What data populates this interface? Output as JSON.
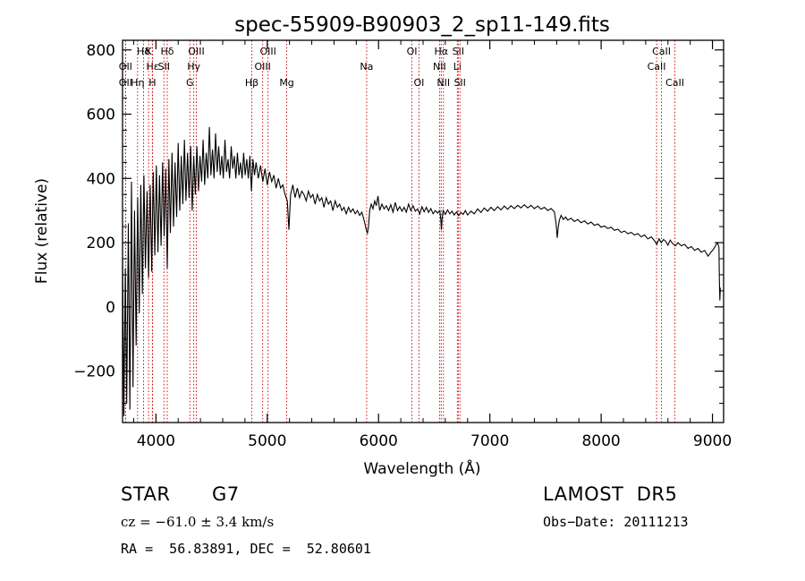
{
  "chart_data": {
    "type": "line",
    "title": "spec-55909-B90903_2_sp11-149.fits",
    "xlabel": "Wavelength (Å)",
    "ylabel": "Flux (relative)",
    "xlim": [
      3700,
      9100
    ],
    "ylim": [
      -360,
      830
    ],
    "x_ticks": [
      4000,
      5000,
      6000,
      7000,
      8000,
      9000
    ],
    "y_ticks": [
      -200,
      0,
      200,
      400,
      600,
      800
    ],
    "grid": false,
    "line_color": "#000000",
    "marker_color": "#cc0000",
    "series": [
      {
        "values": [
          [
            3700,
            150
          ],
          [
            3712,
            -340
          ],
          [
            3725,
            120
          ],
          [
            3738,
            -300
          ],
          [
            3752,
            260
          ],
          [
            3766,
            -320
          ],
          [
            3780,
            390
          ],
          [
            3794,
            -250
          ],
          [
            3808,
            300
          ],
          [
            3822,
            -120
          ],
          [
            3836,
            340
          ],
          [
            3850,
            -20
          ],
          [
            3864,
            380
          ],
          [
            3878,
            40
          ],
          [
            3892,
            410
          ],
          [
            3906,
            120
          ],
          [
            3920,
            360
          ],
          [
            3934,
            90
          ],
          [
            3948,
            380
          ],
          [
            3962,
            110
          ],
          [
            3976,
            420
          ],
          [
            3990,
            160
          ],
          [
            4004,
            440
          ],
          [
            4018,
            170
          ],
          [
            4032,
            410
          ],
          [
            4046,
            190
          ],
          [
            4060,
            450
          ],
          [
            4074,
            220
          ],
          [
            4088,
            430
          ],
          [
            4102,
            120
          ],
          [
            4116,
            460
          ],
          [
            4130,
            230
          ],
          [
            4144,
            480
          ],
          [
            4158,
            250
          ],
          [
            4172,
            450
          ],
          [
            4186,
            280
          ],
          [
            4200,
            510
          ],
          [
            4214,
            300
          ],
          [
            4228,
            470
          ],
          [
            4242,
            320
          ],
          [
            4256,
            520
          ],
          [
            4270,
            330
          ],
          [
            4284,
            480
          ],
          [
            4298,
            340
          ],
          [
            4312,
            500
          ],
          [
            4326,
            300
          ],
          [
            4340,
            470
          ],
          [
            4354,
            350
          ],
          [
            4368,
            500
          ],
          [
            4382,
            360
          ],
          [
            4396,
            470
          ],
          [
            4410,
            390
          ],
          [
            4424,
            520
          ],
          [
            4438,
            380
          ],
          [
            4452,
            480
          ],
          [
            4466,
            400
          ],
          [
            4480,
            560
          ],
          [
            4494,
            410
          ],
          [
            4508,
            490
          ],
          [
            4522,
            400
          ],
          [
            4536,
            540
          ],
          [
            4550,
            420
          ],
          [
            4564,
            500
          ],
          [
            4578,
            410
          ],
          [
            4592,
            470
          ],
          [
            4606,
            400
          ],
          [
            4620,
            520
          ],
          [
            4634,
            420
          ],
          [
            4648,
            460
          ],
          [
            4662,
            400
          ],
          [
            4676,
            500
          ],
          [
            4690,
            430
          ],
          [
            4704,
            470
          ],
          [
            4718,
            400
          ],
          [
            4732,
            480
          ],
          [
            4746,
            410
          ],
          [
            4760,
            450
          ],
          [
            4774,
            400
          ],
          [
            4788,
            480
          ],
          [
            4802,
            410
          ],
          [
            4816,
            460
          ],
          [
            4830,
            400
          ],
          [
            4844,
            470
          ],
          [
            4858,
            360
          ],
          [
            4872,
            460
          ],
          [
            4886,
            410
          ],
          [
            4900,
            450
          ],
          [
            4920,
            400
          ],
          [
            4940,
            440
          ],
          [
            4960,
            390
          ],
          [
            4980,
            430
          ],
          [
            5000,
            380
          ],
          [
            5020,
            420
          ],
          [
            5040,
            390
          ],
          [
            5060,
            410
          ],
          [
            5080,
            370
          ],
          [
            5100,
            400
          ],
          [
            5120,
            370
          ],
          [
            5140,
            380
          ],
          [
            5160,
            350
          ],
          [
            5180,
            330
          ],
          [
            5195,
            240
          ],
          [
            5210,
            350
          ],
          [
            5230,
            380
          ],
          [
            5250,
            340
          ],
          [
            5270,
            370
          ],
          [
            5290,
            340
          ],
          [
            5310,
            360
          ],
          [
            5330,
            350
          ],
          [
            5350,
            330
          ],
          [
            5370,
            360
          ],
          [
            5390,
            340
          ],
          [
            5410,
            350
          ],
          [
            5430,
            320
          ],
          [
            5450,
            350
          ],
          [
            5470,
            330
          ],
          [
            5490,
            340
          ],
          [
            5510,
            310
          ],
          [
            5530,
            340
          ],
          [
            5550,
            320
          ],
          [
            5570,
            330
          ],
          [
            5590,
            300
          ],
          [
            5610,
            330
          ],
          [
            5630,
            310
          ],
          [
            5650,
            320
          ],
          [
            5670,
            300
          ],
          [
            5690,
            310
          ],
          [
            5710,
            290
          ],
          [
            5730,
            310
          ],
          [
            5750,
            295
          ],
          [
            5770,
            305
          ],
          [
            5790,
            290
          ],
          [
            5810,
            300
          ],
          [
            5830,
            285
          ],
          [
            5850,
            295
          ],
          [
            5870,
            270
          ],
          [
            5880,
            255
          ],
          [
            5890,
            240
          ],
          [
            5900,
            230
          ],
          [
            5910,
            250
          ],
          [
            5920,
            300
          ],
          [
            5935,
            320
          ],
          [
            5950,
            305
          ],
          [
            5965,
            330
          ],
          [
            5980,
            315
          ],
          [
            5995,
            345
          ],
          [
            6010,
            300
          ],
          [
            6030,
            320
          ],
          [
            6050,
            305
          ],
          [
            6070,
            315
          ],
          [
            6090,
            300
          ],
          [
            6110,
            318
          ],
          [
            6130,
            295
          ],
          [
            6150,
            325
          ],
          [
            6170,
            300
          ],
          [
            6190,
            312
          ],
          [
            6210,
            298
          ],
          [
            6230,
            310
          ],
          [
            6250,
            295
          ],
          [
            6270,
            320
          ],
          [
            6290,
            300
          ],
          [
            6310,
            315
          ],
          [
            6330,
            298
          ],
          [
            6350,
            305
          ],
          [
            6370,
            290
          ],
          [
            6390,
            312
          ],
          [
            6410,
            296
          ],
          [
            6430,
            310
          ],
          [
            6450,
            294
          ],
          [
            6470,
            306
          ],
          [
            6490,
            290
          ],
          [
            6510,
            300
          ],
          [
            6530,
            292
          ],
          [
            6550,
            300
          ],
          [
            6560,
            270
          ],
          [
            6565,
            240
          ],
          [
            6570,
            272
          ],
          [
            6580,
            300
          ],
          [
            6600,
            288
          ],
          [
            6620,
            302
          ],
          [
            6640,
            290
          ],
          [
            6660,
            298
          ],
          [
            6680,
            286
          ],
          [
            6700,
            296
          ],
          [
            6720,
            284
          ],
          [
            6740,
            294
          ],
          [
            6760,
            288
          ],
          [
            6780,
            300
          ],
          [
            6800,
            286
          ],
          [
            6830,
            298
          ],
          [
            6860,
            290
          ],
          [
            6890,
            305
          ],
          [
            6920,
            294
          ],
          [
            6950,
            308
          ],
          [
            6980,
            298
          ],
          [
            7010,
            310
          ],
          [
            7040,
            300
          ],
          [
            7070,
            312
          ],
          [
            7100,
            302
          ],
          [
            7130,
            314
          ],
          [
            7160,
            304
          ],
          [
            7190,
            315
          ],
          [
            7220,
            306
          ],
          [
            7250,
            316
          ],
          [
            7280,
            308
          ],
          [
            7310,
            318
          ],
          [
            7340,
            308
          ],
          [
            7370,
            316
          ],
          [
            7400,
            306
          ],
          [
            7430,
            314
          ],
          [
            7460,
            304
          ],
          [
            7490,
            310
          ],
          [
            7520,
            300
          ],
          [
            7550,
            306
          ],
          [
            7580,
            296
          ],
          [
            7595,
            260
          ],
          [
            7605,
            215
          ],
          [
            7615,
            250
          ],
          [
            7625,
            270
          ],
          [
            7640,
            285
          ],
          [
            7660,
            272
          ],
          [
            7680,
            280
          ],
          [
            7700,
            270
          ],
          [
            7730,
            276
          ],
          [
            7760,
            266
          ],
          [
            7790,
            272
          ],
          [
            7820,
            262
          ],
          [
            7850,
            268
          ],
          [
            7880,
            258
          ],
          [
            7910,
            264
          ],
          [
            7940,
            254
          ],
          [
            7970,
            258
          ],
          [
            8000,
            248
          ],
          [
            8030,
            252
          ],
          [
            8060,
            244
          ],
          [
            8090,
            248
          ],
          [
            8120,
            238
          ],
          [
            8150,
            242
          ],
          [
            8180,
            232
          ],
          [
            8210,
            236
          ],
          [
            8240,
            228
          ],
          [
            8270,
            232
          ],
          [
            8300,
            224
          ],
          [
            8330,
            228
          ],
          [
            8360,
            218
          ],
          [
            8390,
            224
          ],
          [
            8420,
            212
          ],
          [
            8450,
            218
          ],
          [
            8480,
            206
          ],
          [
            8500,
            195
          ],
          [
            8520,
            212
          ],
          [
            8540,
            200
          ],
          [
            8560,
            210
          ],
          [
            8580,
            204
          ],
          [
            8600,
            192
          ],
          [
            8620,
            208
          ],
          [
            8640,
            198
          ],
          [
            8665,
            190
          ],
          [
            8690,
            200
          ],
          [
            8720,
            190
          ],
          [
            8750,
            195
          ],
          [
            8780,
            182
          ],
          [
            8810,
            188
          ],
          [
            8840,
            176
          ],
          [
            8870,
            182
          ],
          [
            8900,
            170
          ],
          [
            8930,
            176
          ],
          [
            8960,
            158
          ],
          [
            8990,
            172
          ],
          [
            9010,
            180
          ],
          [
            9030,
            192
          ],
          [
            9045,
            200
          ],
          [
            9058,
            185
          ],
          [
            9062,
            80
          ],
          [
            9066,
            20
          ],
          [
            9070,
            60
          ]
        ]
      }
    ],
    "line_markers": [
      {
        "label": "Hδ",
        "wavelength": 3889,
        "row": 1
      },
      {
        "label": "OII",
        "wavelength": 3727,
        "row": 2
      },
      {
        "label": "OII",
        "wavelength": 3727,
        "row": 3
      },
      {
        "label": "Hε",
        "wavelength": 3970,
        "row": 2
      },
      {
        "label": "K",
        "wavelength": 3934,
        "row": 1
      },
      {
        "label": "Hη",
        "wavelength": 3835,
        "row": 3
      },
      {
        "label": "H",
        "wavelength": 3968,
        "row": 3
      },
      {
        "label": "SII",
        "wavelength": 4072,
        "row": 2
      },
      {
        "label": "Hδ",
        "wavelength": 4102,
        "row": 1
      },
      {
        "label": "OIII",
        "wavelength": 4363,
        "row": 1
      },
      {
        "label": "Hγ",
        "wavelength": 4340,
        "row": 2
      },
      {
        "label": "G",
        "wavelength": 4305,
        "row": 3
      },
      {
        "label": "Hβ",
        "wavelength": 4861,
        "row": 3
      },
      {
        "label": "OIII",
        "wavelength": 5007,
        "row": 1
      },
      {
        "label": "OIII",
        "wavelength": 4959,
        "row": 2
      },
      {
        "label": "Mg",
        "wavelength": 5175,
        "row": 3
      },
      {
        "label": "Na",
        "wavelength": 5893,
        "row": 2
      },
      {
        "label": "OI",
        "wavelength": 6300,
        "row": 1
      },
      {
        "label": "OI",
        "wavelength": 6363,
        "row": 3
      },
      {
        "label": "Hα",
        "wavelength": 6563,
        "row": 1
      },
      {
        "label": "NII",
        "wavelength": 6548,
        "row": 2
      },
      {
        "label": "NII",
        "wavelength": 6583,
        "row": 3
      },
      {
        "label": "SII",
        "wavelength": 6716,
        "row": 1
      },
      {
        "label": "Li",
        "wavelength": 6708,
        "row": 2
      },
      {
        "label": "SII",
        "wavelength": 6731,
        "row": 3
      },
      {
        "label": "CaII",
        "wavelength": 8542,
        "row": 1
      },
      {
        "label": "CaII",
        "wavelength": 8498,
        "row": 2
      },
      {
        "label": "CaII",
        "wavelength": 8662,
        "row": 3
      }
    ]
  },
  "info": {
    "object_class": "STAR",
    "subclass": "G7",
    "survey": "LAMOST  DR5",
    "velocity": "cz = −61.0 ± 3.4 km/s",
    "obs_date": "Obs−Date: 20111213",
    "coords": "RA =  56.83891, DEC =  52.80601"
  }
}
